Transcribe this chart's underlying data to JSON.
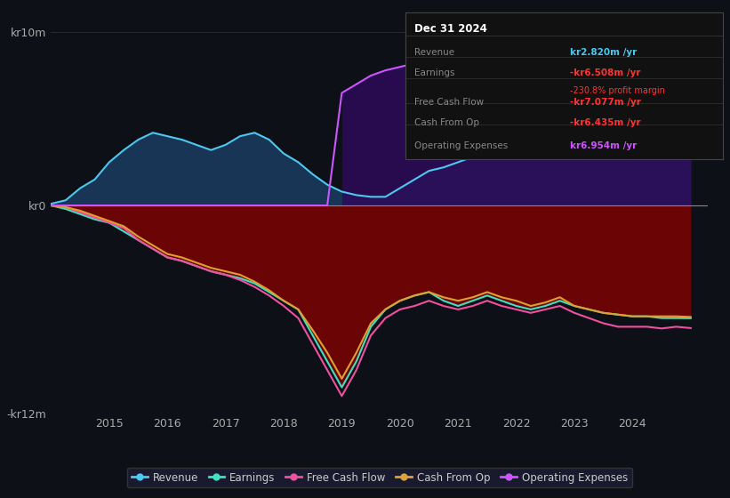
{
  "background_color": "#0d1117",
  "plot_bg_color": "#0d1117",
  "ylabel_top": "kr10m",
  "ylabel_zero": "kr0",
  "ylabel_bottom": "-kr12m",
  "ylim": [
    -12,
    11
  ],
  "xmin": 2014.0,
  "xmax": 2025.3,
  "x_ticks": [
    2015,
    2016,
    2017,
    2018,
    2019,
    2020,
    2021,
    2022,
    2023,
    2024
  ],
  "grid_color": "#333333",
  "zero_line_color": "#888888",
  "revenue_color": "#4dc8f0",
  "earnings_color": "#40e0c0",
  "fcf_color": "#f050a0",
  "cashfromop_color": "#e0a030",
  "opex_color": "#cc55ff",
  "revenue_fill_pos": "#1a3a5c",
  "revenue_fill_neg": "#5c1a1a",
  "earnings_fill_neg": "#8b0000",
  "opex_fill": "#2d0a5a",
  "time_points": [
    2014.0,
    2014.25,
    2014.5,
    2014.75,
    2015.0,
    2015.25,
    2015.5,
    2015.75,
    2016.0,
    2016.25,
    2016.5,
    2016.75,
    2017.0,
    2017.25,
    2017.5,
    2017.75,
    2018.0,
    2018.25,
    2018.5,
    2018.75,
    2019.0,
    2019.25,
    2019.5,
    2019.75,
    2020.0,
    2020.25,
    2020.5,
    2020.75,
    2021.0,
    2021.25,
    2021.5,
    2021.75,
    2022.0,
    2022.25,
    2022.5,
    2022.75,
    2023.0,
    2023.25,
    2023.5,
    2023.75,
    2024.0,
    2024.25,
    2024.5,
    2024.75,
    2025.0
  ],
  "revenue": [
    0.1,
    0.3,
    1.0,
    1.5,
    2.5,
    3.2,
    3.8,
    4.2,
    4.0,
    3.8,
    3.5,
    3.2,
    3.5,
    4.0,
    4.2,
    3.8,
    3.0,
    2.5,
    1.8,
    1.2,
    0.8,
    0.6,
    0.5,
    0.5,
    1.0,
    1.5,
    2.0,
    2.2,
    2.5,
    2.8,
    3.0,
    3.2,
    3.5,
    3.8,
    4.0,
    3.8,
    3.5,
    3.2,
    3.0,
    3.0,
    2.9,
    2.9,
    2.8,
    2.8,
    2.82
  ],
  "earnings": [
    0.0,
    -0.2,
    -0.5,
    -0.8,
    -1.0,
    -1.5,
    -2.0,
    -2.5,
    -3.0,
    -3.2,
    -3.5,
    -3.8,
    -4.0,
    -4.2,
    -4.5,
    -5.0,
    -5.5,
    -6.0,
    -7.5,
    -9.0,
    -10.5,
    -9.0,
    -7.0,
    -6.0,
    -5.5,
    -5.2,
    -5.0,
    -5.5,
    -5.8,
    -5.5,
    -5.2,
    -5.5,
    -5.8,
    -6.0,
    -5.8,
    -5.5,
    -5.8,
    -6.0,
    -6.2,
    -6.3,
    -6.4,
    -6.4,
    -6.5,
    -6.5,
    -6.508
  ],
  "free_cash_flow": [
    0.0,
    -0.1,
    -0.4,
    -0.7,
    -1.0,
    -1.3,
    -2.0,
    -2.5,
    -3.0,
    -3.2,
    -3.5,
    -3.8,
    -4.0,
    -4.3,
    -4.7,
    -5.2,
    -5.8,
    -6.5,
    -8.0,
    -9.5,
    -11.0,
    -9.5,
    -7.5,
    -6.5,
    -6.0,
    -5.8,
    -5.5,
    -5.8,
    -6.0,
    -5.8,
    -5.5,
    -5.8,
    -6.0,
    -6.2,
    -6.0,
    -5.8,
    -6.2,
    -6.5,
    -6.8,
    -7.0,
    -7.0,
    -7.0,
    -7.1,
    -7.0,
    -7.077
  ],
  "cash_from_op": [
    0.0,
    -0.1,
    -0.3,
    -0.6,
    -0.9,
    -1.2,
    -1.8,
    -2.3,
    -2.8,
    -3.0,
    -3.3,
    -3.6,
    -3.8,
    -4.0,
    -4.4,
    -4.9,
    -5.5,
    -6.0,
    -7.2,
    -8.5,
    -10.0,
    -8.5,
    -6.8,
    -6.0,
    -5.5,
    -5.2,
    -5.0,
    -5.3,
    -5.5,
    -5.3,
    -5.0,
    -5.3,
    -5.5,
    -5.8,
    -5.6,
    -5.3,
    -5.8,
    -6.0,
    -6.2,
    -6.3,
    -6.4,
    -6.4,
    -6.4,
    -6.4,
    -6.435
  ],
  "opex": [
    0.0,
    0.0,
    0.0,
    0.0,
    0.0,
    0.0,
    0.0,
    0.0,
    0.0,
    0.0,
    0.0,
    0.0,
    0.0,
    0.0,
    0.0,
    0.0,
    0.0,
    0.0,
    0.0,
    0.0,
    6.5,
    7.0,
    7.5,
    7.8,
    8.0,
    8.2,
    8.5,
    8.8,
    9.0,
    9.2,
    9.5,
    9.5,
    9.8,
    10.0,
    9.8,
    9.5,
    9.2,
    9.0,
    8.8,
    8.5,
    8.0,
    7.8,
    7.5,
    7.2,
    6.954
  ],
  "info_box": {
    "date": "Dec 31 2024",
    "revenue_label": "Revenue",
    "revenue_value": "kr2.820m /yr",
    "earnings_label": "Earnings",
    "earnings_value": "-kr6.508m /yr",
    "margin_value": "-230.8% profit margin",
    "fcf_label": "Free Cash Flow",
    "fcf_value": "-kr7.077m /yr",
    "cashop_label": "Cash From Op",
    "cashop_value": "-kr6.435m /yr",
    "opex_label": "Operating Expenses",
    "opex_value": "kr6.954m /yr"
  },
  "legend_items": [
    {
      "label": "Revenue",
      "color": "#4dc8f0"
    },
    {
      "label": "Earnings",
      "color": "#40e0c0"
    },
    {
      "label": "Free Cash Flow",
      "color": "#f050a0"
    },
    {
      "label": "Cash From Op",
      "color": "#e0a030"
    },
    {
      "label": "Operating Expenses",
      "color": "#cc55ff"
    }
  ]
}
